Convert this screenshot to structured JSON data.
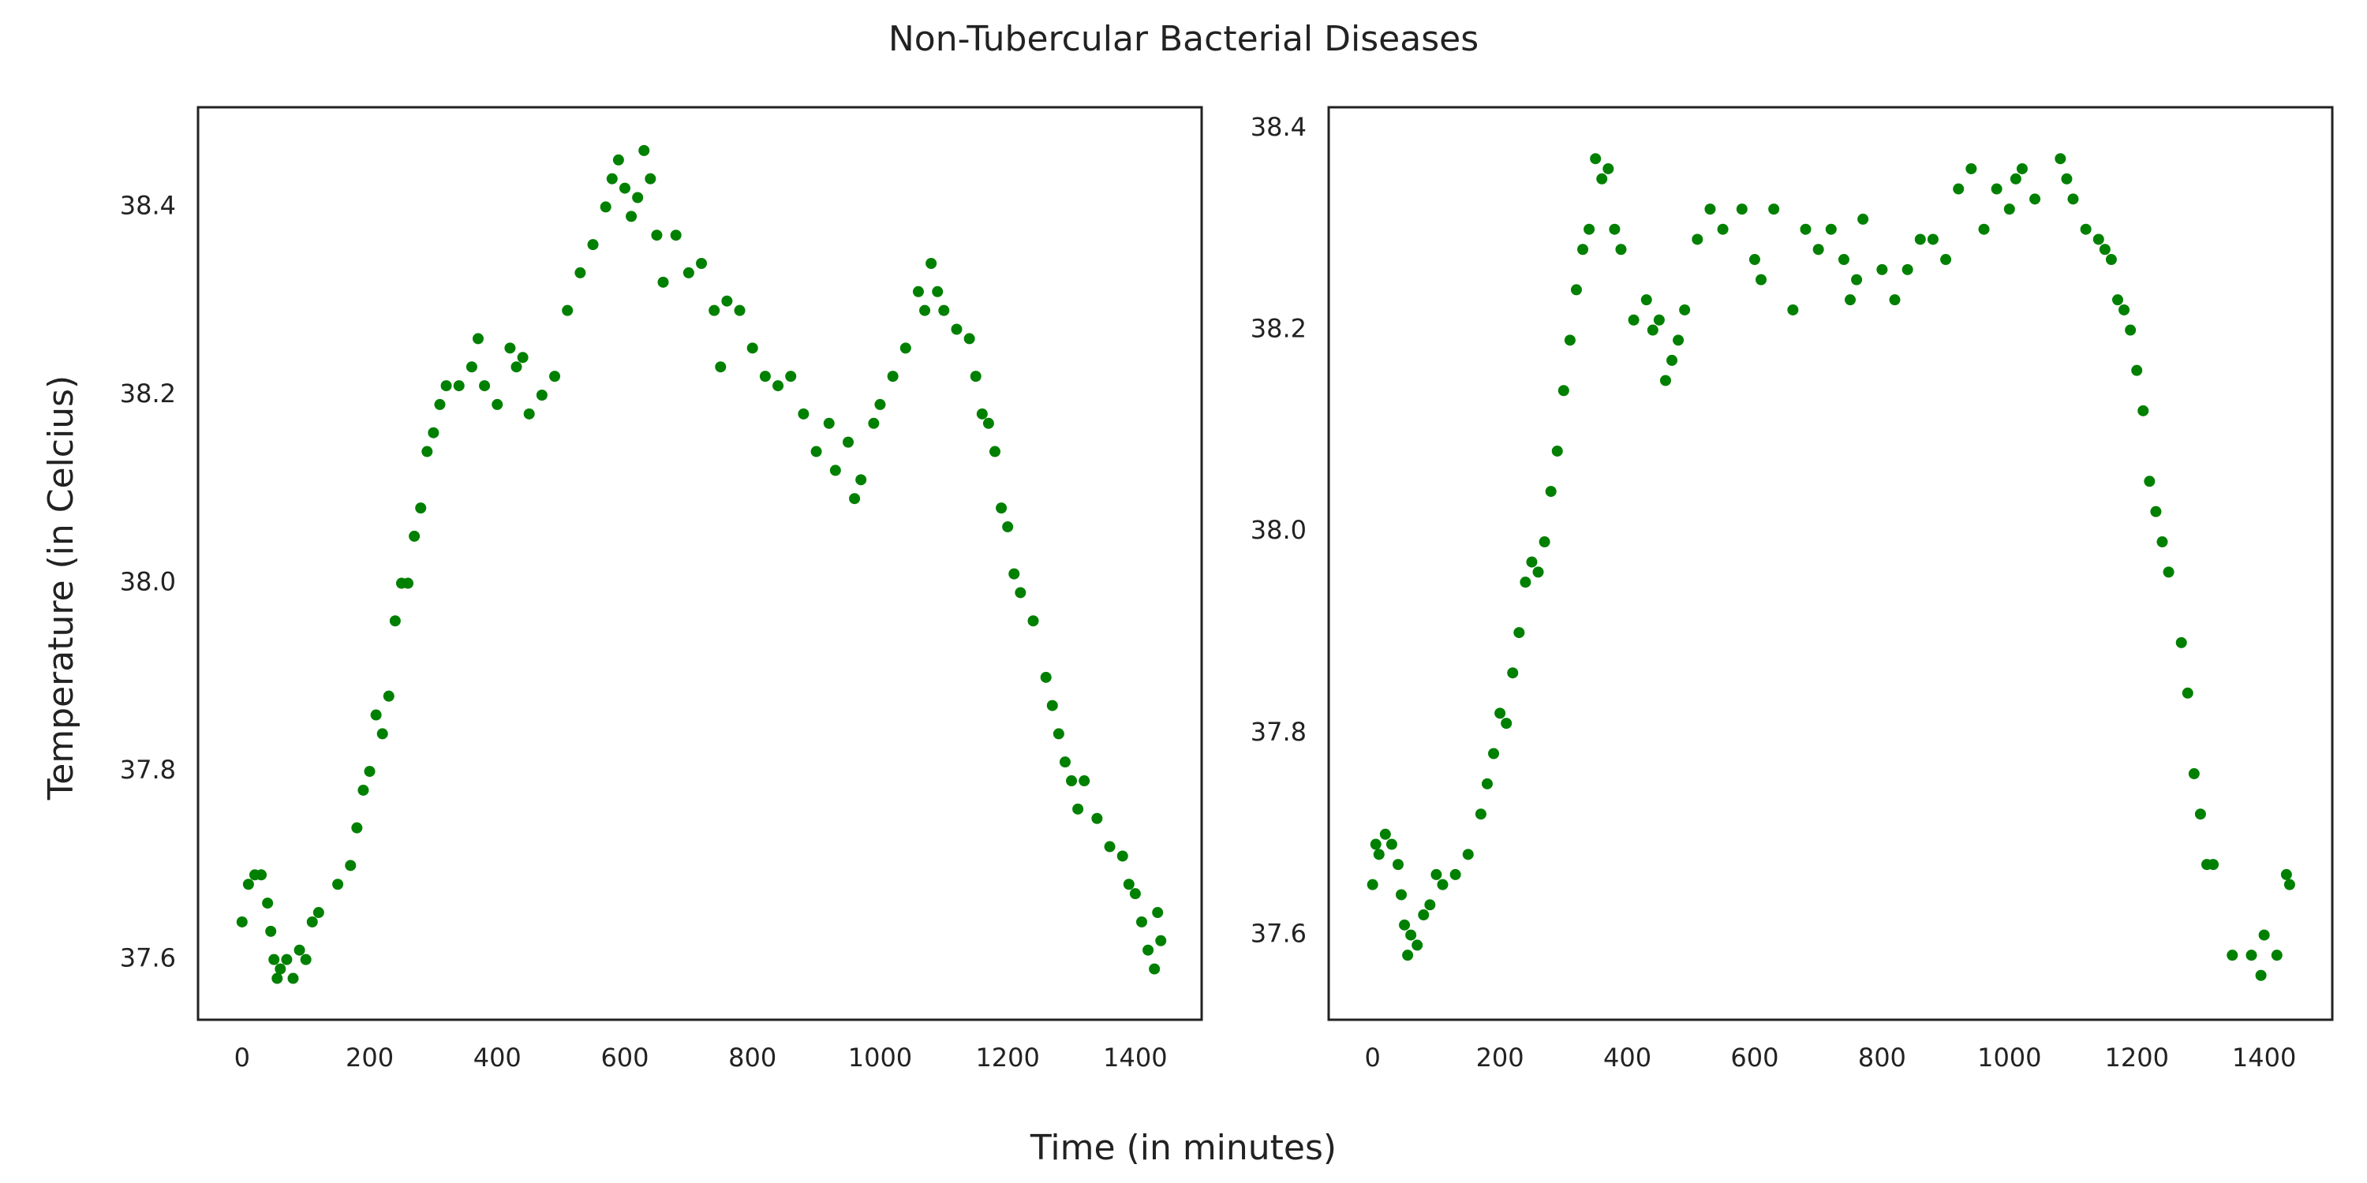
{
  "title": "Non-Tubercular Bacterial Diseases",
  "xlabel": "Time (in minutes)",
  "ylabel": "Temperature (in Celcius)",
  "chart_data": [
    {
      "type": "scatter",
      "color": "#008000",
      "xlim": [
        -69,
        1504
      ],
      "ylim": [
        37.536,
        38.506
      ],
      "xticks": [
        0,
        200,
        400,
        600,
        800,
        1000,
        1200,
        1400
      ],
      "yticks": [
        37.6,
        37.8,
        {
          "value": 38,
          "label": "38.0"
        },
        38.2,
        38.4
      ],
      "x": [
        0,
        10,
        20,
        30,
        40,
        45,
        50,
        55,
        60,
        70,
        80,
        90,
        100,
        110,
        120,
        150,
        170,
        180,
        190,
        200,
        210,
        220,
        230,
        240,
        250,
        260,
        270,
        280,
        290,
        300,
        310,
        320,
        340,
        360,
        370,
        380,
        400,
        420,
        430,
        440,
        450,
        470,
        490,
        510,
        530,
        550,
        570,
        580,
        590,
        600,
        610,
        620,
        630,
        640,
        650,
        660,
        680,
        700,
        720,
        740,
        750,
        760,
        780,
        800,
        820,
        840,
        860,
        880,
        900,
        920,
        930,
        950,
        960,
        970,
        990,
        1000,
        1020,
        1040,
        1060,
        1070,
        1080,
        1090,
        1100,
        1120,
        1140,
        1150,
        1160,
        1170,
        1180,
        1190,
        1200,
        1210,
        1220,
        1240,
        1260,
        1270,
        1280,
        1290,
        1300,
        1310,
        1320,
        1340,
        1360,
        1380,
        1390,
        1400,
        1410,
        1420,
        1430,
        1435,
        1440
      ],
      "values": [
        37.64,
        37.68,
        37.69,
        37.69,
        37.66,
        37.63,
        37.6,
        37.58,
        37.59,
        37.6,
        37.58,
        37.61,
        37.6,
        37.64,
        37.65,
        37.68,
        37.7,
        37.74,
        37.78,
        37.8,
        37.86,
        37.84,
        37.88,
        37.96,
        38.0,
        38.0,
        38.05,
        38.08,
        38.14,
        38.16,
        38.19,
        38.21,
        38.21,
        38.23,
        38.26,
        38.21,
        38.19,
        38.25,
        38.23,
        38.24,
        38.18,
        38.2,
        38.22,
        38.29,
        38.33,
        38.36,
        38.4,
        38.43,
        38.45,
        38.42,
        38.39,
        38.41,
        38.46,
        38.43,
        38.37,
        38.32,
        38.37,
        38.33,
        38.34,
        38.29,
        38.23,
        38.3,
        38.29,
        38.25,
        38.22,
        38.21,
        38.22,
        38.18,
        38.14,
        38.17,
        38.12,
        38.15,
        38.09,
        38.11,
        38.17,
        38.19,
        38.22,
        38.25,
        38.31,
        38.29,
        38.34,
        38.31,
        38.29,
        38.27,
        38.26,
        38.22,
        38.18,
        38.17,
        38.14,
        38.08,
        38.06,
        38.01,
        37.99,
        37.96,
        37.9,
        37.87,
        37.84,
        37.81,
        37.79,
        37.76,
        37.79,
        37.75,
        37.72,
        37.71,
        37.68,
        37.67,
        37.64,
        37.61,
        37.59,
        37.65,
        37.62
      ]
    },
    {
      "type": "scatter",
      "color": "#008000",
      "xlim": [
        -69,
        1507
      ],
      "ylim": [
        37.516,
        38.421
      ],
      "xticks": [
        0,
        200,
        400,
        600,
        800,
        1000,
        1200,
        1400
      ],
      "yticks": [
        37.6,
        37.8,
        {
          "value": 38,
          "label": "38.0"
        },
        38.2,
        38.4
      ],
      "x": [
        0,
        5,
        10,
        20,
        30,
        40,
        45,
        50,
        55,
        60,
        70,
        80,
        90,
        100,
        110,
        130,
        150,
        170,
        180,
        190,
        200,
        210,
        220,
        230,
        240,
        250,
        260,
        270,
        280,
        290,
        300,
        310,
        320,
        330,
        340,
        350,
        360,
        370,
        380,
        390,
        410,
        430,
        440,
        450,
        460,
        470,
        480,
        490,
        510,
        530,
        550,
        580,
        600,
        610,
        630,
        660,
        680,
        700,
        720,
        740,
        750,
        760,
        770,
        800,
        820,
        840,
        860,
        880,
        900,
        920,
        940,
        960,
        980,
        1000,
        1010,
        1020,
        1040,
        1080,
        1090,
        1100,
        1120,
        1140,
        1150,
        1160,
        1170,
        1180,
        1190,
        1200,
        1210,
        1220,
        1230,
        1240,
        1250,
        1270,
        1280,
        1290,
        1300,
        1310,
        1320,
        1350,
        1380,
        1395,
        1400,
        1420,
        1435,
        1440
      ],
      "values": [
        37.65,
        37.69,
        37.68,
        37.7,
        37.69,
        37.67,
        37.64,
        37.61,
        37.58,
        37.6,
        37.59,
        37.62,
        37.63,
        37.66,
        37.65,
        37.66,
        37.68,
        37.72,
        37.75,
        37.78,
        37.82,
        37.81,
        37.86,
        37.9,
        37.95,
        37.97,
        37.96,
        37.99,
        38.04,
        38.08,
        38.14,
        38.19,
        38.24,
        38.28,
        38.3,
        38.37,
        38.35,
        38.36,
        38.3,
        38.28,
        38.21,
        38.23,
        38.2,
        38.21,
        38.15,
        38.17,
        38.19,
        38.22,
        38.29,
        38.32,
        38.3,
        38.32,
        38.27,
        38.25,
        38.32,
        38.22,
        38.3,
        38.28,
        38.3,
        38.27,
        38.23,
        38.25,
        38.31,
        38.26,
        38.23,
        38.26,
        38.29,
        38.29,
        38.27,
        38.34,
        38.36,
        38.3,
        38.34,
        38.32,
        38.35,
        38.36,
        38.33,
        38.37,
        38.35,
        38.33,
        38.3,
        38.29,
        38.28,
        38.27,
        38.23,
        38.22,
        38.2,
        38.16,
        38.12,
        38.05,
        38.02,
        37.99,
        37.96,
        37.89,
        37.84,
        37.76,
        37.72,
        37.67,
        37.67,
        37.58,
        37.58,
        37.56,
        37.6,
        37.58,
        37.66,
        37.65
      ]
    }
  ]
}
